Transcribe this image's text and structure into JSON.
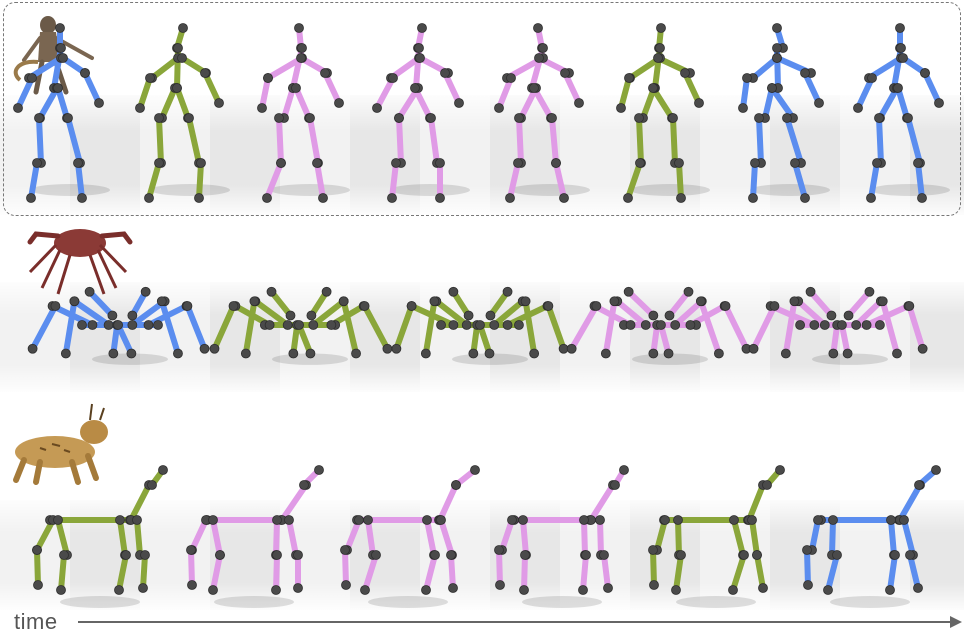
{
  "timeline": {
    "label": "time"
  },
  "colors": {
    "blue": "#5b8def",
    "green": "#8aa63a",
    "pink": "#e09be6",
    "joint": "#4a4a4a",
    "arrow": "#666666",
    "frame": "#777777"
  },
  "rows": [
    {
      "creature": "monkey",
      "poses": [
        "blue",
        "green",
        "pink",
        "pink",
        "pink",
        "green",
        "blue",
        "blue"
      ]
    },
    {
      "creature": "crab",
      "poses": [
        "blue",
        "green",
        "green",
        "pink",
        "pink"
      ]
    },
    {
      "creature": "lynx",
      "poses": [
        "green",
        "pink",
        "pink",
        "pink",
        "green",
        "blue"
      ]
    }
  ]
}
